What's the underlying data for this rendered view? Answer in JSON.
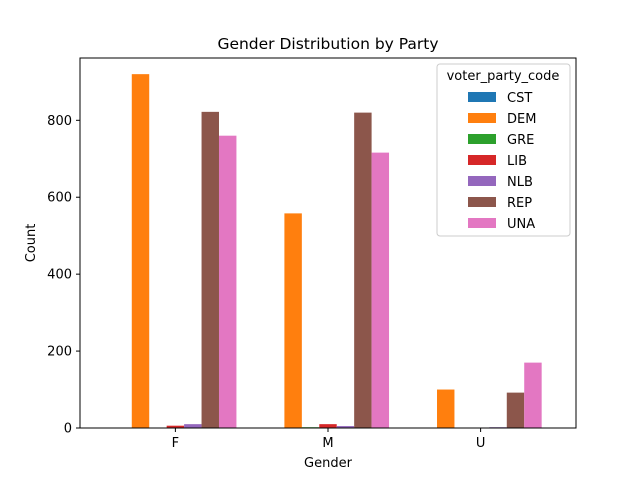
{
  "chart_data": {
    "type": "bar",
    "title": "Gender Distribution by Party",
    "xlabel": "Gender",
    "ylabel": "Count",
    "categories": [
      "F",
      "M",
      "U"
    ],
    "ylim": [
      0,
      962
    ],
    "yticks": [
      0,
      200,
      400,
      600,
      800
    ],
    "grid": false,
    "legend": {
      "title": "voter_party_code",
      "placement": "top-right"
    },
    "series": [
      {
        "name": "CST",
        "color": "#1f77b4",
        "values": [
          1,
          1,
          0
        ]
      },
      {
        "name": "DEM",
        "color": "#ff7f0e",
        "values": [
          920,
          558,
          100
        ]
      },
      {
        "name": "GRE",
        "color": "#2ca02c",
        "values": [
          1,
          2,
          0
        ]
      },
      {
        "name": "LIB",
        "color": "#d62728",
        "values": [
          6,
          10,
          1
        ]
      },
      {
        "name": "NLB",
        "color": "#9467bd",
        "values": [
          10,
          5,
          2
        ]
      },
      {
        "name": "REP",
        "color": "#8c564b",
        "values": [
          822,
          820,
          92
        ]
      },
      {
        "name": "UNA",
        "color": "#e377c2",
        "values": [
          760,
          716,
          170
        ]
      }
    ]
  }
}
